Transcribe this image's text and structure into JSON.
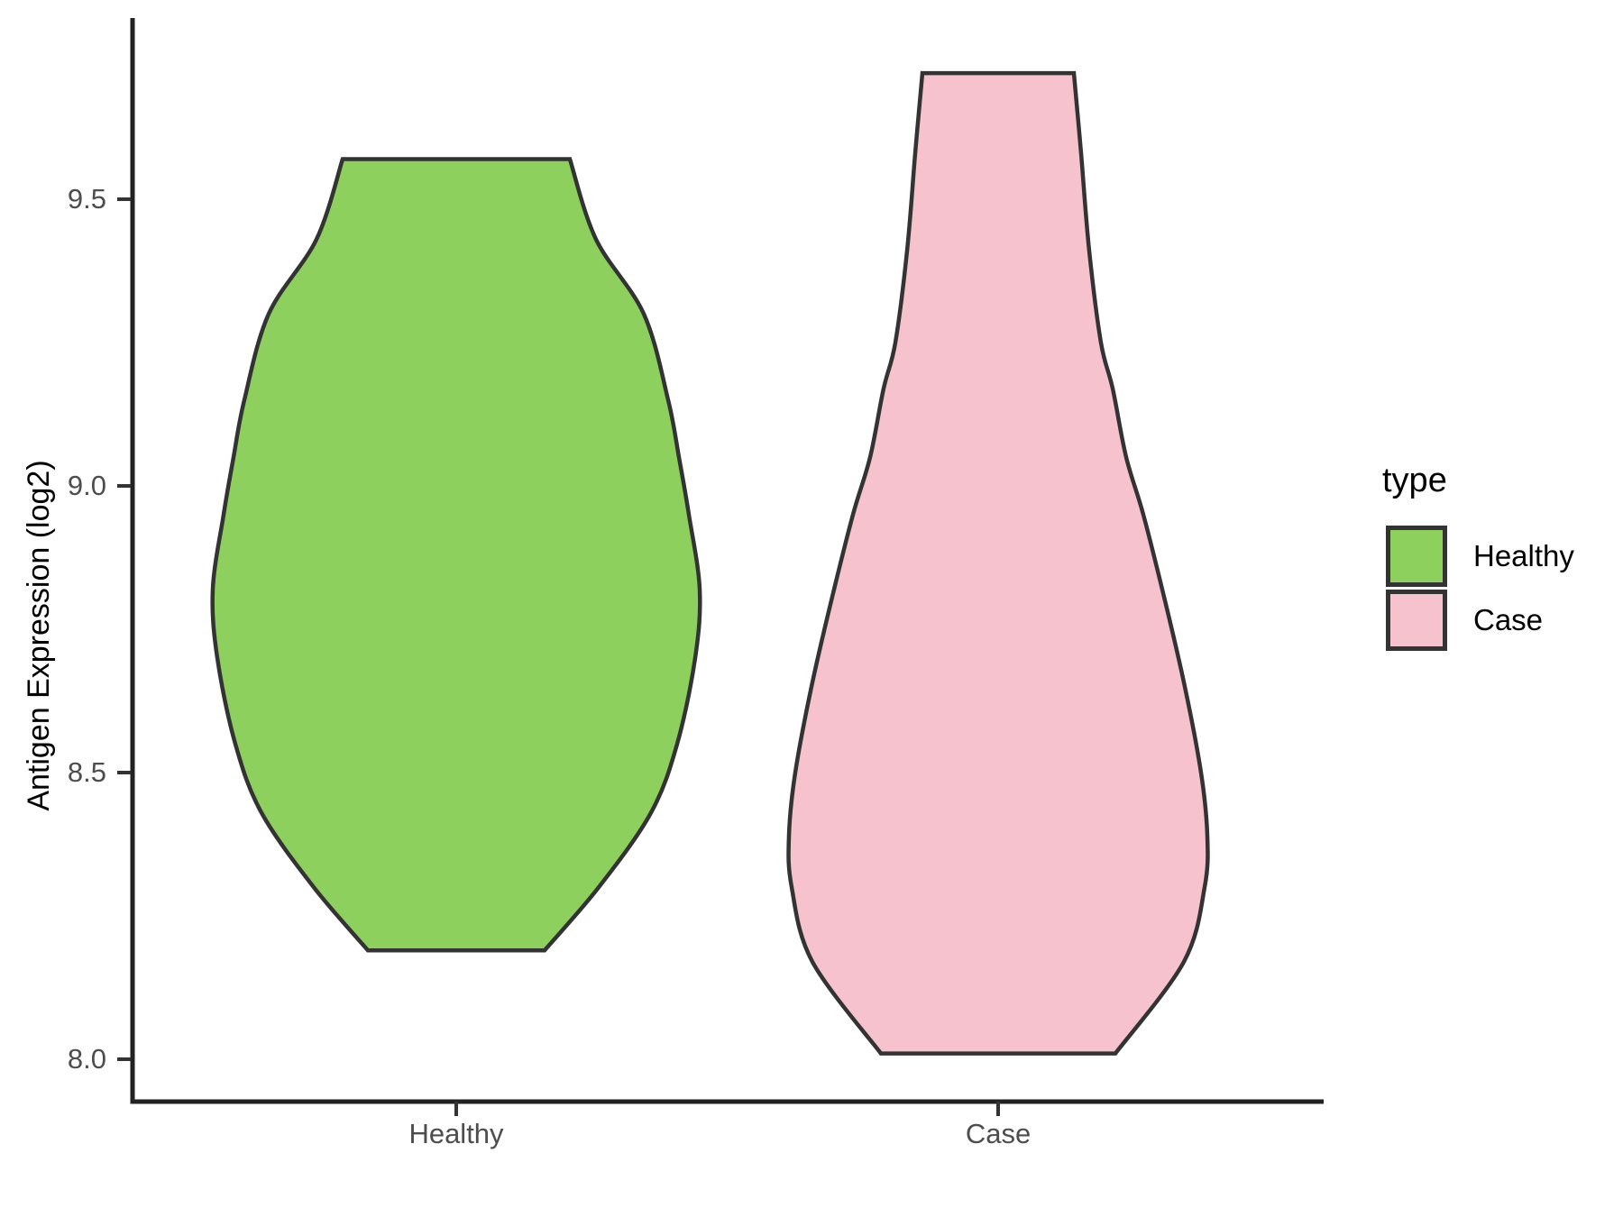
{
  "chart_data": {
    "type": "violin",
    "title": "",
    "xlabel": "",
    "ylabel": "Antigen Expression (log2)",
    "categories": [
      "Healthy",
      "Case"
    ],
    "y_ticks": [
      9.5,
      9.0,
      8.5,
      8.0
    ],
    "y_tick_labels": [
      "9.5",
      "9.0",
      "8.5",
      "8.0"
    ],
    "y_axis_range": [
      7.93,
      9.89
    ],
    "grid": "off",
    "legend": {
      "title": "type",
      "position": "right",
      "entries": [
        {
          "label": "Healthy",
          "color": "#8ed05e"
        },
        {
          "label": "Case",
          "color": "#f5c2ce"
        }
      ]
    },
    "series": [
      {
        "name": "Healthy",
        "fill": "#8ed05e",
        "outline": "#333333",
        "y_min": 8.19,
        "y_max": 9.57,
        "density_profile": [
          [
            9.57,
            126
          ],
          [
            9.43,
            155
          ],
          [
            9.3,
            208
          ],
          [
            9.15,
            235
          ],
          [
            9.05,
            247
          ],
          [
            8.95,
            258
          ],
          [
            8.82,
            270
          ],
          [
            8.7,
            265
          ],
          [
            8.55,
            245
          ],
          [
            8.43,
            216
          ],
          [
            8.3,
            158
          ],
          [
            8.19,
            98
          ]
        ]
      },
      {
        "name": "Case",
        "fill": "#f5c2ce",
        "outline": "#333333",
        "y_min": 8.01,
        "y_max": 9.72,
        "density_profile": [
          [
            9.72,
            84
          ],
          [
            9.58,
            92
          ],
          [
            9.41,
            101
          ],
          [
            9.25,
            114
          ],
          [
            9.17,
            127
          ],
          [
            9.05,
            142
          ],
          [
            8.95,
            161
          ],
          [
            8.8,
            185
          ],
          [
            8.65,
            207
          ],
          [
            8.5,
            225
          ],
          [
            8.39,
            232
          ],
          [
            8.3,
            229
          ],
          [
            8.17,
            206
          ],
          [
            8.01,
            130
          ]
        ]
      }
    ],
    "profile_units": "pairs of [y value (log2), violin half-width in px]"
  }
}
